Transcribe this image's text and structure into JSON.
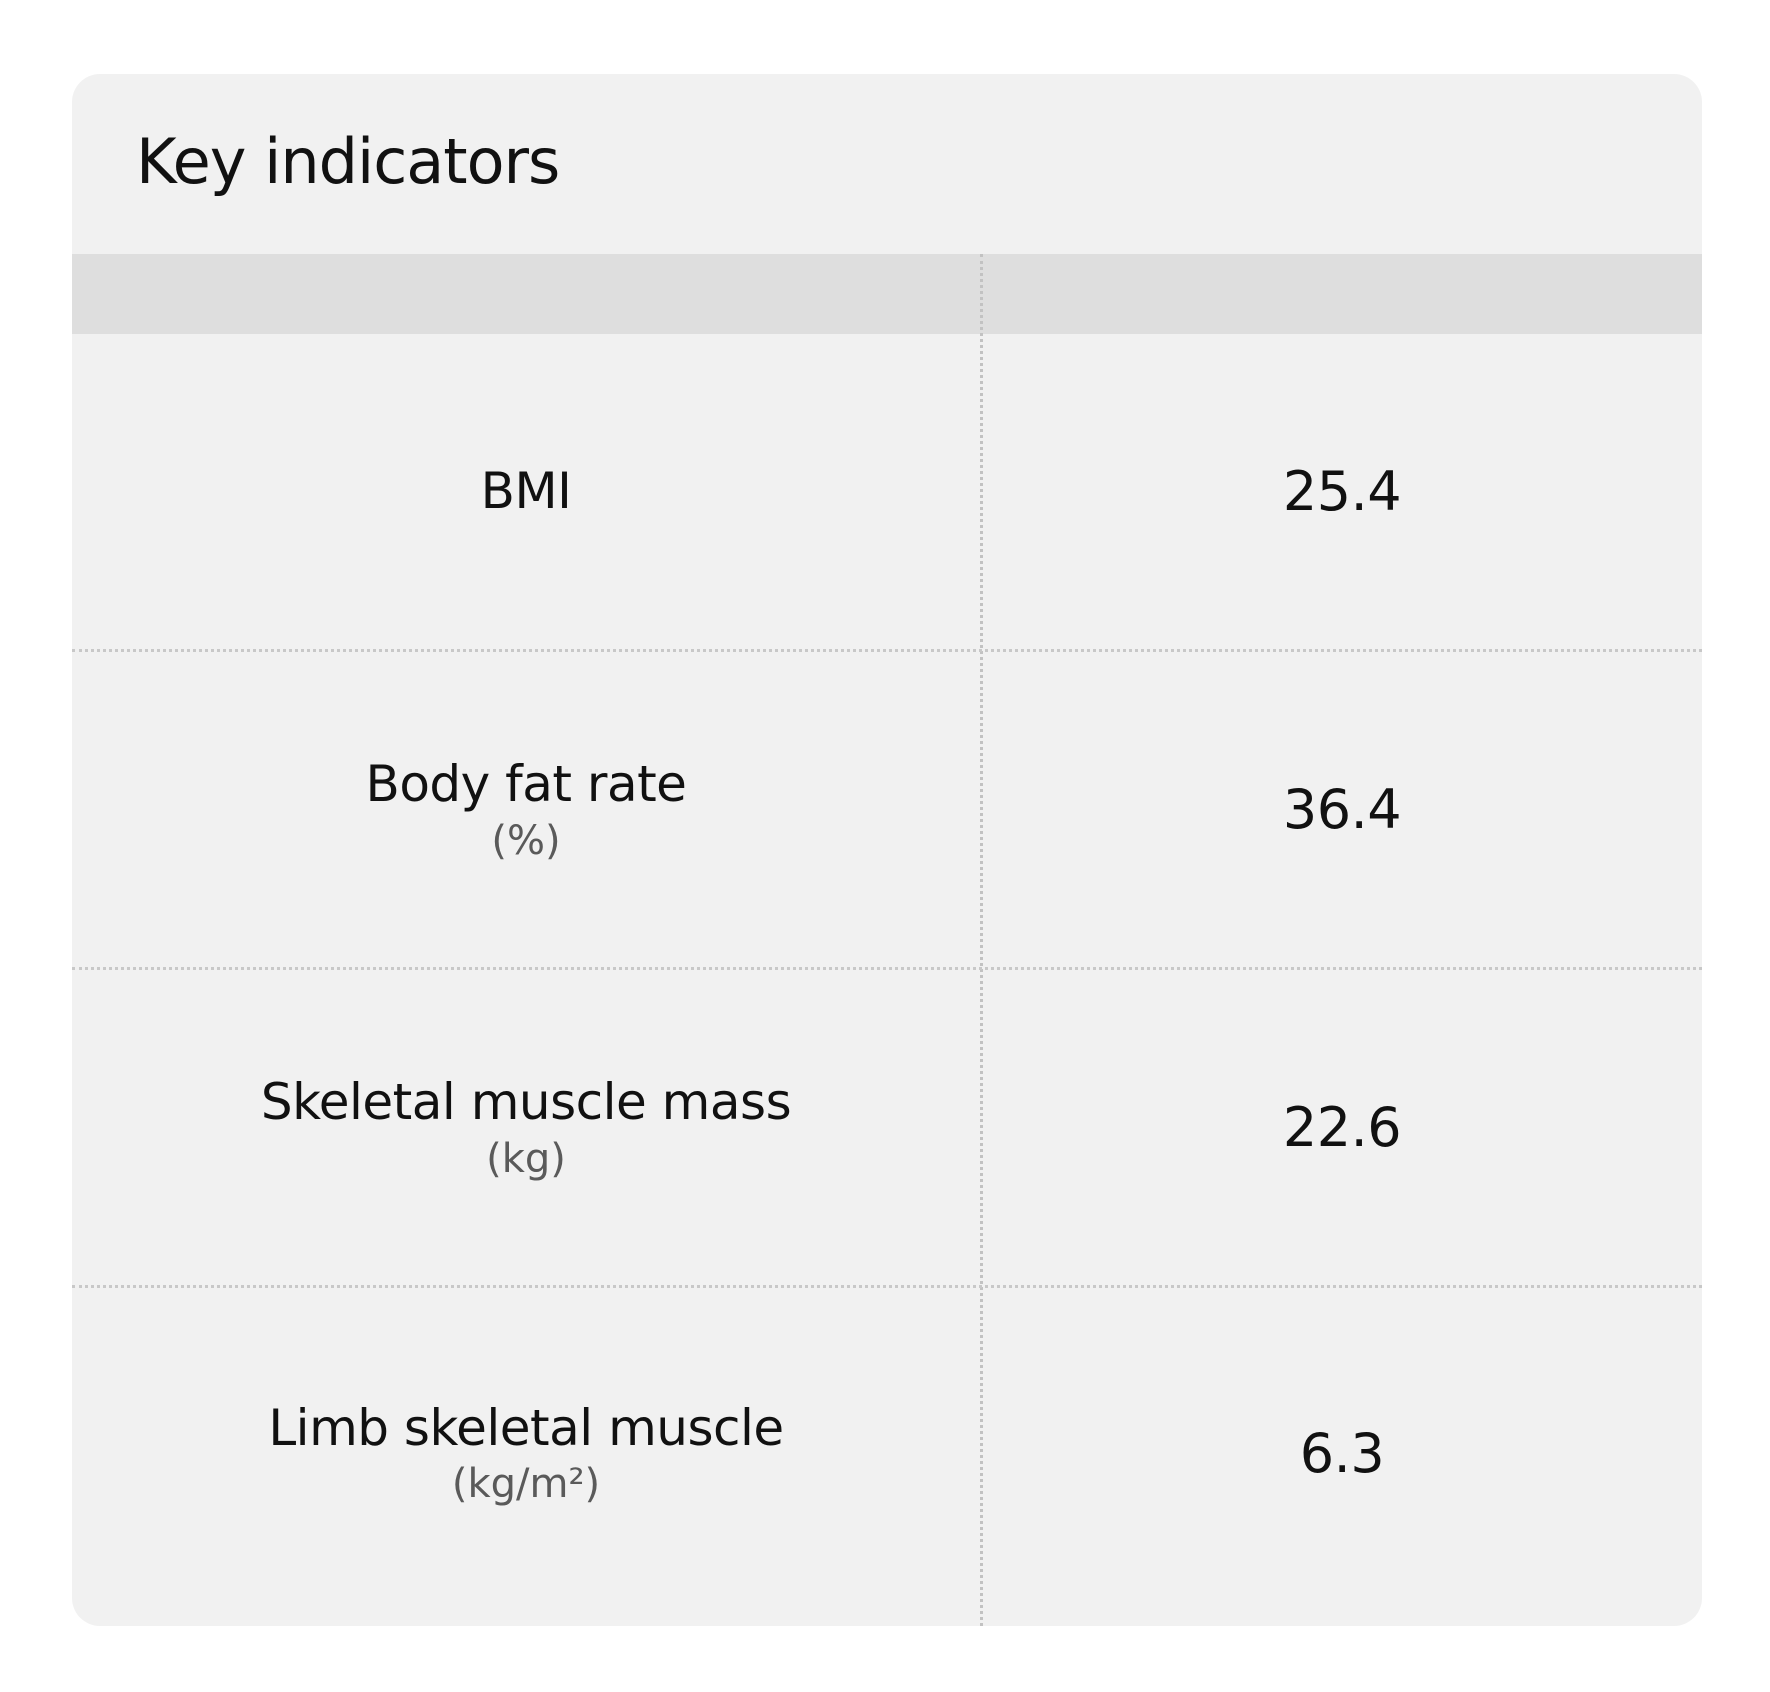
{
  "card": {
    "title": "Key indicators"
  },
  "table": {
    "header": {
      "left": "",
      "right": ""
    },
    "rows": [
      {
        "label": "BMI",
        "unit": "",
        "value": "25.4"
      },
      {
        "label": "Body fat rate",
        "unit": "(%)",
        "value": "36.4"
      },
      {
        "label": "Skeletal muscle mass",
        "unit": "(kg)",
        "value": "22.6"
      },
      {
        "label": "Limb skeletal muscle",
        "unit": "(kg/m²)",
        "value": "6.3"
      }
    ]
  },
  "colors": {
    "background": "#ffffff",
    "card": "#f1f1f1",
    "header": "#dedede",
    "divider": "#c2c2c2",
    "text": "#111111",
    "unit_text": "#5a5a5a"
  }
}
